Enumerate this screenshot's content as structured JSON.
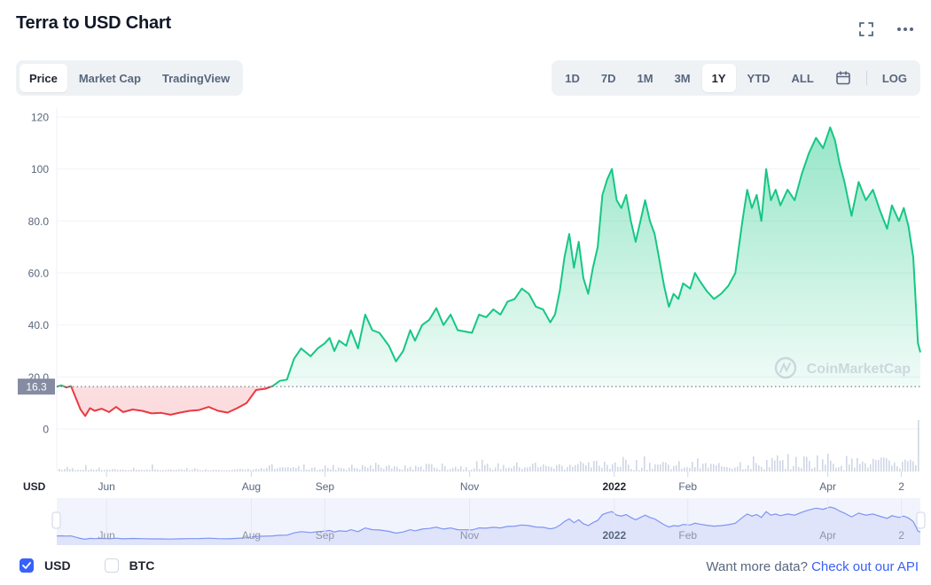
{
  "header": {
    "title": "Terra to USD Chart",
    "fullscreen_icon": "fullscreen-icon",
    "more_icon": "more-dots-icon"
  },
  "view_tabs": [
    {
      "label": "Price",
      "active": true
    },
    {
      "label": "Market Cap",
      "active": false
    },
    {
      "label": "TradingView",
      "active": false
    }
  ],
  "range_tabs": [
    {
      "label": "1D",
      "active": false
    },
    {
      "label": "7D",
      "active": false
    },
    {
      "label": "1M",
      "active": false
    },
    {
      "label": "3M",
      "active": false
    },
    {
      "label": "1Y",
      "active": true
    },
    {
      "label": "YTD",
      "active": false
    },
    {
      "label": "ALL",
      "active": false
    }
  ],
  "calendar_icon": "calendar-icon",
  "log_label": "LOG",
  "colors": {
    "up": "#16c784",
    "down": "#ea3943",
    "accent": "#3861fb",
    "navigator_fill": "#dfe4fb"
  },
  "legend": {
    "usd_label": "USD",
    "usd_checked": true,
    "btc_label": "BTC",
    "btc_checked": false
  },
  "footer": {
    "prefix": "Want more data?",
    "link": "Check out our API"
  },
  "chart_data": {
    "type": "area",
    "currency_label": "USD",
    "watermark": "CoinMarketCap",
    "reference_value": 16.3,
    "reference_label": "16.3",
    "ylim": [
      -13,
      120
    ],
    "yticks": [
      0,
      20,
      40,
      60,
      80,
      100,
      120
    ],
    "ytick_labels": [
      "0",
      "20.0",
      "40.0",
      "60.0",
      "80.0",
      "100",
      "120"
    ],
    "x_range": [
      "2021-05-11",
      "2022-05-10"
    ],
    "xticks": [
      {
        "date": "2021-06-01",
        "label": "Jun",
        "bold": false
      },
      {
        "date": "2021-08-01",
        "label": "Aug",
        "bold": false
      },
      {
        "date": "2021-09-01",
        "label": "Sep",
        "bold": false
      },
      {
        "date": "2021-11-01",
        "label": "Nov",
        "bold": false
      },
      {
        "date": "2022-01-01",
        "label": "2022",
        "bold": true
      },
      {
        "date": "2022-02-01",
        "label": "Feb",
        "bold": false
      },
      {
        "date": "2022-04-01",
        "label": "Apr",
        "bold": false
      },
      {
        "date": "2022-05-02",
        "label": "2",
        "bold": false
      }
    ],
    "series": [
      {
        "points": [
          [
            "2021-05-11",
            16.3
          ],
          [
            "2021-05-13",
            16.8
          ],
          [
            "2021-05-15",
            16.0
          ],
          [
            "2021-05-17",
            16.5
          ],
          [
            "2021-05-19",
            12.0
          ],
          [
            "2021-05-21",
            7.5
          ],
          [
            "2021-05-23",
            5.0
          ],
          [
            "2021-05-25",
            8.0
          ],
          [
            "2021-05-27",
            7.0
          ],
          [
            "2021-05-30",
            7.8
          ],
          [
            "2021-06-02",
            6.5
          ],
          [
            "2021-06-05",
            8.5
          ],
          [
            "2021-06-08",
            6.5
          ],
          [
            "2021-06-12",
            7.5
          ],
          [
            "2021-06-16",
            7.0
          ],
          [
            "2021-06-20",
            6.0
          ],
          [
            "2021-06-24",
            6.2
          ],
          [
            "2021-06-28",
            5.5
          ],
          [
            "2021-07-02",
            6.3
          ],
          [
            "2021-07-06",
            7.0
          ],
          [
            "2021-07-10",
            7.3
          ],
          [
            "2021-07-14",
            8.5
          ],
          [
            "2021-07-18",
            7.0
          ],
          [
            "2021-07-22",
            6.3
          ],
          [
            "2021-07-26",
            8.0
          ],
          [
            "2021-07-30",
            10.0
          ],
          [
            "2021-08-03",
            15.0
          ],
          [
            "2021-08-07",
            15.5
          ],
          [
            "2021-08-10",
            16.5
          ],
          [
            "2021-08-13",
            18.5
          ],
          [
            "2021-08-16",
            19.0
          ],
          [
            "2021-08-19",
            27.0
          ],
          [
            "2021-08-22",
            31.0
          ],
          [
            "2021-08-26",
            28.0
          ],
          [
            "2021-08-29",
            31.0
          ],
          [
            "2021-09-01",
            33.0
          ],
          [
            "2021-09-03",
            35.0
          ],
          [
            "2021-09-05",
            30.0
          ],
          [
            "2021-09-07",
            34.0
          ],
          [
            "2021-09-10",
            32.0
          ],
          [
            "2021-09-12",
            38.0
          ],
          [
            "2021-09-15",
            31.0
          ],
          [
            "2021-09-18",
            44.0
          ],
          [
            "2021-09-21",
            38.0
          ],
          [
            "2021-09-24",
            37.0
          ],
          [
            "2021-09-28",
            32.0
          ],
          [
            "2021-10-01",
            26.0
          ],
          [
            "2021-10-04",
            30.0
          ],
          [
            "2021-10-07",
            38.0
          ],
          [
            "2021-10-09",
            34.0
          ],
          [
            "2021-10-12",
            40.0
          ],
          [
            "2021-10-15",
            42.0
          ],
          [
            "2021-10-18",
            46.5
          ],
          [
            "2021-10-21",
            40.0
          ],
          [
            "2021-10-24",
            44.0
          ],
          [
            "2021-10-27",
            38.0
          ],
          [
            "2021-10-30",
            37.5
          ],
          [
            "2021-11-02",
            37.0
          ],
          [
            "2021-11-05",
            44.0
          ],
          [
            "2021-11-08",
            43.0
          ],
          [
            "2021-11-11",
            46.0
          ],
          [
            "2021-11-14",
            44.0
          ],
          [
            "2021-11-17",
            49.0
          ],
          [
            "2021-11-20",
            50.0
          ],
          [
            "2021-11-23",
            54.0
          ],
          [
            "2021-11-26",
            52.0
          ],
          [
            "2021-11-29",
            47.0
          ],
          [
            "2021-12-02",
            46.0
          ],
          [
            "2021-12-05",
            41.0
          ],
          [
            "2021-12-07",
            44.0
          ],
          [
            "2021-12-09",
            53.0
          ],
          [
            "2021-12-11",
            66.0
          ],
          [
            "2021-12-13",
            75.0
          ],
          [
            "2021-12-15",
            62.0
          ],
          [
            "2021-12-17",
            72.0
          ],
          [
            "2021-12-19",
            58.0
          ],
          [
            "2021-12-21",
            52.0
          ],
          [
            "2021-12-23",
            62.0
          ],
          [
            "2021-12-25",
            70.0
          ],
          [
            "2021-12-27",
            90.0
          ],
          [
            "2021-12-29",
            96.0
          ],
          [
            "2021-12-31",
            100.0
          ],
          [
            "2022-01-02",
            88.0
          ],
          [
            "2022-01-04",
            85.0
          ],
          [
            "2022-01-06",
            90.0
          ],
          [
            "2022-01-08",
            80.0
          ],
          [
            "2022-01-10",
            72.0
          ],
          [
            "2022-01-12",
            80.0
          ],
          [
            "2022-01-14",
            88.0
          ],
          [
            "2022-01-16",
            80.0
          ],
          [
            "2022-01-18",
            75.0
          ],
          [
            "2022-01-20",
            65.0
          ],
          [
            "2022-01-22",
            55.0
          ],
          [
            "2022-01-24",
            47.0
          ],
          [
            "2022-01-26",
            52.0
          ],
          [
            "2022-01-28",
            50.0
          ],
          [
            "2022-01-30",
            56.0
          ],
          [
            "2022-02-02",
            54.0
          ],
          [
            "2022-02-04",
            60.0
          ],
          [
            "2022-02-06",
            57.0
          ],
          [
            "2022-02-09",
            53.0
          ],
          [
            "2022-02-12",
            50.0
          ],
          [
            "2022-02-15",
            52.0
          ],
          [
            "2022-02-18",
            55.0
          ],
          [
            "2022-02-21",
            60.0
          ],
          [
            "2022-02-24",
            80.0
          ],
          [
            "2022-02-26",
            92.0
          ],
          [
            "2022-02-28",
            85.0
          ],
          [
            "2022-03-02",
            90.0
          ],
          [
            "2022-03-04",
            80.0
          ],
          [
            "2022-03-06",
            100.0
          ],
          [
            "2022-03-08",
            88.0
          ],
          [
            "2022-03-10",
            92.0
          ],
          [
            "2022-03-12",
            86.0
          ],
          [
            "2022-03-15",
            92.0
          ],
          [
            "2022-03-18",
            88.0
          ],
          [
            "2022-03-21",
            98.0
          ],
          [
            "2022-03-24",
            106.0
          ],
          [
            "2022-03-27",
            112.0
          ],
          [
            "2022-03-30",
            108.0
          ],
          [
            "2022-04-02",
            116.0
          ],
          [
            "2022-04-04",
            111.0
          ],
          [
            "2022-04-06",
            102.0
          ],
          [
            "2022-04-08",
            95.0
          ],
          [
            "2022-04-11",
            82.0
          ],
          [
            "2022-04-14",
            95.0
          ],
          [
            "2022-04-17",
            88.0
          ],
          [
            "2022-04-20",
            92.0
          ],
          [
            "2022-04-23",
            84.0
          ],
          [
            "2022-04-26",
            77.0
          ],
          [
            "2022-04-28",
            86.0
          ],
          [
            "2022-05-01",
            80.0
          ],
          [
            "2022-05-03",
            85.0
          ],
          [
            "2022-05-05",
            78.0
          ],
          [
            "2022-05-07",
            66.0
          ],
          [
            "2022-05-09",
            33.0
          ],
          [
            "2022-05-10",
            29.5
          ]
        ]
      }
    ],
    "volume_visible": true
  }
}
